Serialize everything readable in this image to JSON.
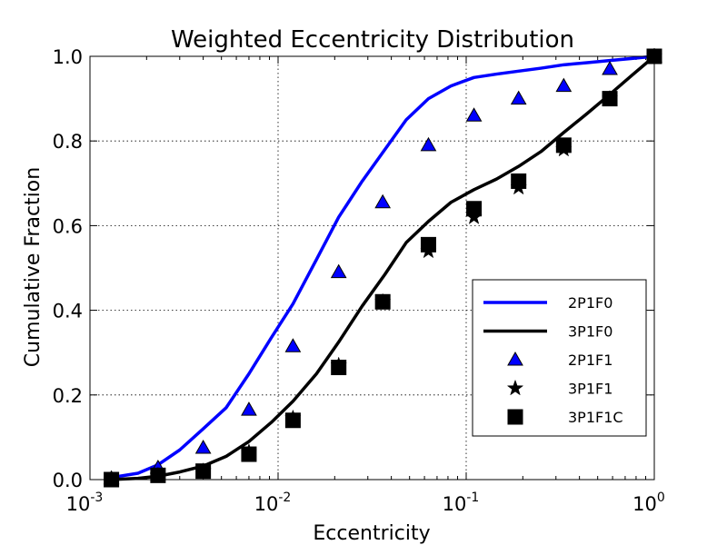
{
  "chart_data": {
    "type": "line",
    "title": "Weighted Eccentricity Distribution",
    "xlabel": "Eccentricity",
    "ylabel": "Cumulative Fraction",
    "xscale": "log",
    "xlim": [
      0.001,
      1.0
    ],
    "ylim": [
      0.0,
      1.0
    ],
    "grid": true,
    "legend_position": "lower-right",
    "x_ticks": [
      {
        "base": "10",
        "exp": "-3"
      },
      {
        "base": "10",
        "exp": "-2"
      },
      {
        "base": "10",
        "exp": "-1"
      },
      {
        "base": "10",
        "exp": "0"
      }
    ],
    "y_ticks": [
      "0.0",
      "0.2",
      "0.4",
      "0.6",
      "0.8",
      "1.0"
    ],
    "series": [
      {
        "name": "2P1F0",
        "kind": "line",
        "color": "#0000ff",
        "x": [
          0.0013,
          0.0018,
          0.0023,
          0.003,
          0.004,
          0.0053,
          0.007,
          0.0092,
          0.012,
          0.016,
          0.021,
          0.028,
          0.037,
          0.048,
          0.063,
          0.083,
          0.11,
          0.145,
          0.19,
          0.25,
          0.33,
          0.44,
          0.58,
          0.76,
          1.0
        ],
        "y": [
          0.005,
          0.015,
          0.035,
          0.07,
          0.12,
          0.17,
          0.25,
          0.335,
          0.415,
          0.52,
          0.62,
          0.705,
          0.78,
          0.85,
          0.9,
          0.93,
          0.95,
          0.958,
          0.965,
          0.972,
          0.98,
          0.985,
          0.99,
          0.995,
          1.0
        ]
      },
      {
        "name": "3P1F0",
        "kind": "line",
        "color": "#000000",
        "x": [
          0.0013,
          0.0018,
          0.0023,
          0.003,
          0.004,
          0.0053,
          0.007,
          0.0092,
          0.012,
          0.016,
          0.021,
          0.028,
          0.037,
          0.048,
          0.063,
          0.083,
          0.11,
          0.145,
          0.19,
          0.25,
          0.33,
          0.44,
          0.58,
          0.76,
          1.0
        ],
        "y": [
          0.0,
          0.003,
          0.008,
          0.018,
          0.032,
          0.055,
          0.09,
          0.135,
          0.185,
          0.25,
          0.325,
          0.41,
          0.485,
          0.56,
          0.61,
          0.655,
          0.685,
          0.71,
          0.74,
          0.775,
          0.82,
          0.865,
          0.91,
          0.955,
          1.0
        ]
      },
      {
        "name": "2P1F1",
        "kind": "scatter",
        "marker": "triangle",
        "color": "#0000ff",
        "x": [
          0.0013,
          0.0023,
          0.004,
          0.007,
          0.012,
          0.021,
          0.036,
          0.063,
          0.11,
          0.19,
          0.33,
          0.58,
          1.0
        ],
        "y": [
          0.003,
          0.028,
          0.075,
          0.165,
          0.315,
          0.49,
          0.655,
          0.79,
          0.86,
          0.9,
          0.93,
          0.97,
          1.0
        ]
      },
      {
        "name": "3P1F1",
        "kind": "scatter",
        "marker": "star",
        "color": "#000000",
        "x": [
          0.0013,
          0.0023,
          0.004,
          0.007,
          0.012,
          0.021,
          0.036,
          0.063,
          0.11,
          0.19,
          0.33,
          0.58,
          1.0
        ],
        "y": [
          0.0,
          0.01,
          0.02,
          0.065,
          0.145,
          0.27,
          0.42,
          0.54,
          0.62,
          0.69,
          0.78,
          0.9,
          1.0
        ]
      },
      {
        "name": "3P1F1C",
        "kind": "scatter",
        "marker": "square",
        "color": "#000000",
        "x": [
          0.0013,
          0.0023,
          0.004,
          0.007,
          0.012,
          0.021,
          0.036,
          0.063,
          0.11,
          0.19,
          0.33,
          0.58,
          1.0
        ],
        "y": [
          0.0,
          0.01,
          0.02,
          0.06,
          0.14,
          0.265,
          0.42,
          0.555,
          0.64,
          0.705,
          0.79,
          0.9,
          1.0
        ]
      }
    ]
  }
}
